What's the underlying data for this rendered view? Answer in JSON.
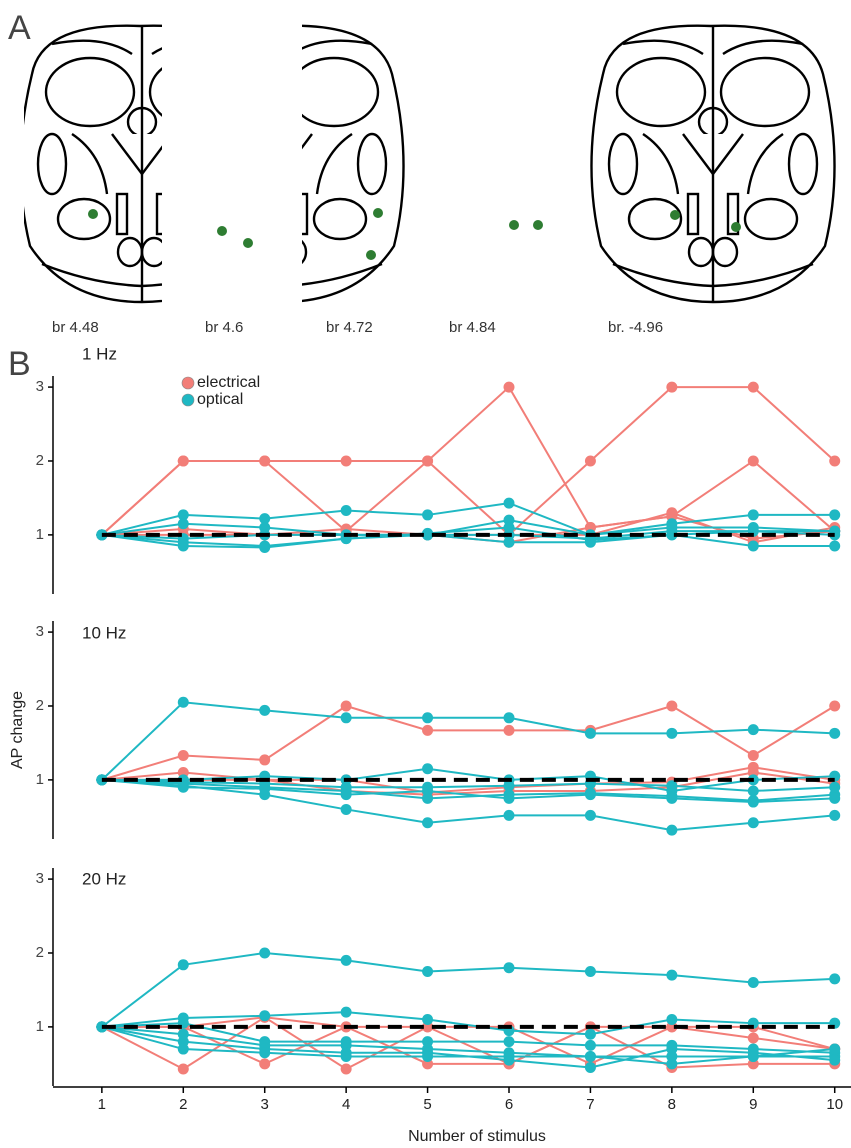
{
  "figure": {
    "panel_a": {
      "label": "A",
      "sections": [
        "br 4.48",
        "br 4.6",
        "br 4.72",
        "br 4.84",
        "br. -4.96"
      ]
    },
    "panel_b": {
      "label": "B"
    }
  },
  "chart_data": [
    {
      "type": "line",
      "title": "1 Hz",
      "legend": "top-left",
      "x": [
        1,
        2,
        3,
        4,
        5,
        6,
        7,
        8,
        9,
        10
      ],
      "xlim": [
        0.4,
        10.2
      ],
      "ylim": [
        0.2,
        3.15
      ],
      "yticks": [
        1,
        2,
        3
      ],
      "reference_line": {
        "value": 1,
        "style": "dashed",
        "color": "#000000"
      },
      "series": [
        {
          "name": "electrical",
          "color": "#f27e78",
          "lines": [
            [
              1,
              2,
              2,
              2,
              2,
              1,
              2,
              3,
              3,
              2
            ],
            [
              1,
              2,
              2,
              1.05,
              2,
              3,
              1.1,
              1.25,
              0.95,
              1.05
            ],
            [
              1,
              1.08,
              1,
              1.08,
              1,
              0.9,
              1.1,
              1.25,
              2,
              1.05
            ],
            [
              1,
              1,
              1,
              1,
              1,
              1,
              1,
              1.3,
              0.9,
              1.1
            ]
          ]
        },
        {
          "name": "optical",
          "color": "#1fb8c3",
          "lines": [
            [
              1,
              1.27,
              1.22,
              1.33,
              1.27,
              1.43,
              1,
              1.15,
              1.27,
              1.27
            ],
            [
              1,
              1.15,
              1.1,
              1,
              1,
              1.2,
              1,
              1.1,
              1.1,
              1.05
            ],
            [
              1,
              0.9,
              0.85,
              0.95,
              1.02,
              1.1,
              0.93,
              1,
              0.85,
              0.85
            ],
            [
              1,
              0.85,
              0.83,
              0.95,
              1,
              0.9,
              0.9,
              1,
              1.05,
              1
            ],
            [
              1,
              0.95,
              1,
              1,
              1,
              1,
              0.95,
              1.05,
              1.05,
              1.05
            ]
          ]
        }
      ]
    },
    {
      "type": "line",
      "title": "10 Hz",
      "ylabel": "AP change",
      "x": [
        1,
        2,
        3,
        4,
        5,
        6,
        7,
        8,
        9,
        10
      ],
      "xlim": [
        0.4,
        10.2
      ],
      "ylim": [
        0.2,
        3.15
      ],
      "yticks": [
        1,
        2,
        3
      ],
      "reference_line": {
        "value": 1,
        "style": "dashed",
        "color": "#000000"
      },
      "series": [
        {
          "color": "#f27e78",
          "lines": [
            [
              1,
              1.33,
              1.27,
              2,
              1.67,
              1.67,
              1.67,
              2,
              1.33,
              2
            ],
            [
              1,
              1.1,
              1,
              1,
              0.83,
              0.9,
              0.95,
              0.97,
              1.17,
              1
            ],
            [
              1,
              1,
              1,
              0.85,
              0.8,
              0.85,
              0.85,
              0.9,
              1.1,
              0.95
            ]
          ]
        },
        {
          "color": "#1fb8c3",
          "lines": [
            [
              1,
              2.05,
              1.94,
              1.84,
              1.84,
              1.84,
              1.63,
              1.63,
              1.68,
              1.63
            ],
            [
              1,
              1,
              1.05,
              1,
              1.15,
              1,
              1.05,
              0.85,
              1,
              1.05
            ],
            [
              1,
              0.95,
              0.9,
              0.85,
              0.75,
              0.8,
              0.82,
              0.78,
              0.72,
              0.8
            ],
            [
              1,
              0.92,
              0.8,
              0.6,
              0.42,
              0.52,
              0.52,
              0.32,
              0.42,
              0.52
            ],
            [
              1,
              0.97,
              0.95,
              0.9,
              0.9,
              0.92,
              0.95,
              0.92,
              0.85,
              0.9
            ],
            [
              1,
              0.9,
              0.88,
              0.8,
              0.85,
              0.75,
              0.8,
              0.75,
              0.7,
              0.75
            ]
          ]
        }
      ]
    },
    {
      "type": "line",
      "title": "20 Hz",
      "xlabel": "Number of stimulus",
      "x": [
        1,
        2,
        3,
        4,
        5,
        6,
        7,
        8,
        9,
        10
      ],
      "xlim": [
        0.4,
        10.2
      ],
      "xticks": [
        1,
        2,
        3,
        4,
        5,
        6,
        7,
        8,
        9,
        10
      ],
      "ylim": [
        0.2,
        3.15
      ],
      "yticks": [
        1,
        2,
        3
      ],
      "reference_line": {
        "value": 1,
        "style": "dashed",
        "color": "#000000"
      },
      "series": [
        {
          "color": "#f27e78",
          "lines": [
            [
              1,
              0.43,
              1.13,
              0.43,
              1,
              1,
              0.5,
              1,
              1,
              0.7
            ],
            [
              1,
              1,
              0.5,
              1,
              0.5,
              0.5,
              1,
              0.45,
              0.5,
              0.5
            ],
            [
              1,
              1,
              1.13,
              1,
              1,
              0.5,
              1,
              1,
              0.85,
              0.7
            ]
          ]
        },
        {
          "color": "#1fb8c3",
          "lines": [
            [
              1,
              1.84,
              2,
              1.9,
              1.75,
              1.8,
              1.75,
              1.7,
              1.6,
              1.65
            ],
            [
              1,
              1.12,
              1.15,
              1.2,
              1.1,
              0.95,
              0.9,
              1.1,
              1.05,
              1.05
            ],
            [
              1,
              1.05,
              0.8,
              0.8,
              0.8,
              0.8,
              0.75,
              0.75,
              0.7,
              0.65
            ],
            [
              1,
              0.9,
              0.75,
              0.75,
              0.7,
              0.65,
              0.6,
              0.6,
              0.6,
              0.6
            ],
            [
              1,
              0.8,
              0.7,
              0.65,
              0.65,
              0.55,
              0.45,
              0.7,
              0.65,
              0.55
            ],
            [
              1,
              0.7,
              0.65,
              0.6,
              0.6,
              0.6,
              0.6,
              0.5,
              0.6,
              0.7
            ]
          ]
        }
      ]
    }
  ]
}
